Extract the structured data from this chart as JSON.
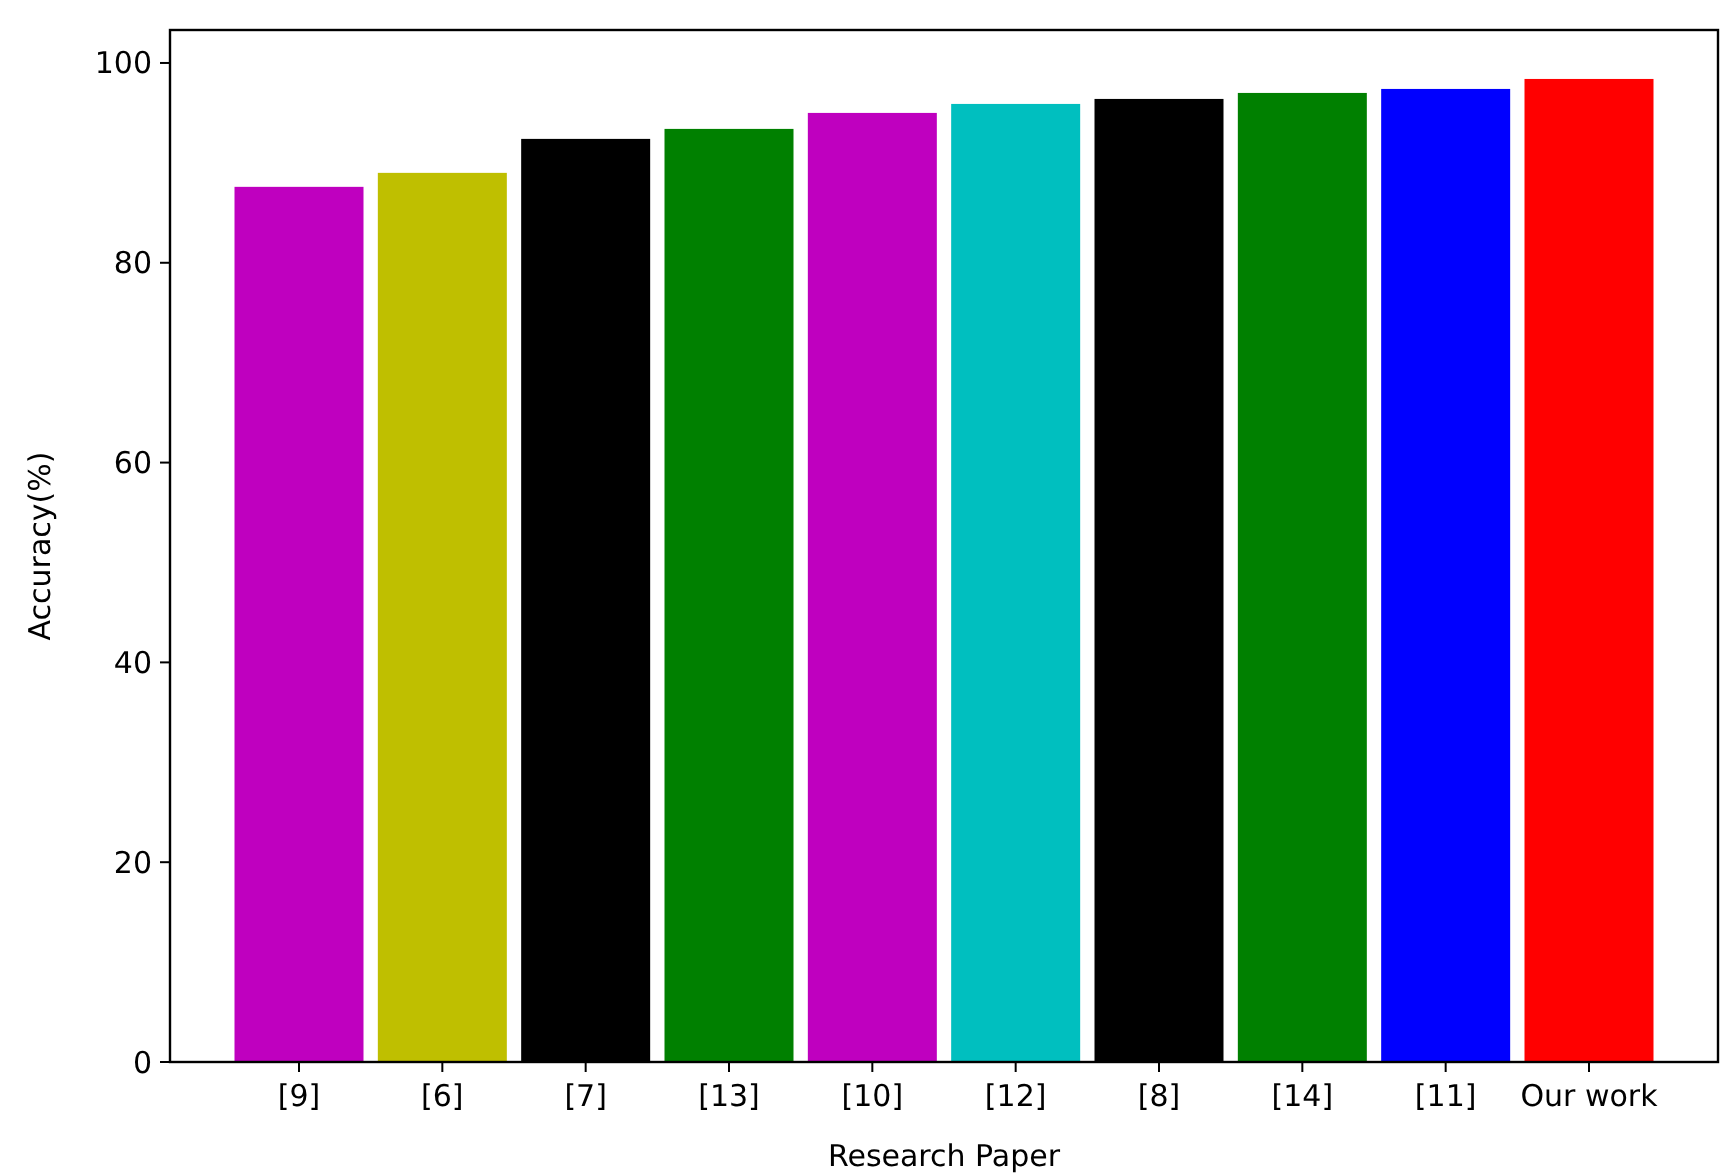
{
  "chart_data": {
    "type": "bar",
    "xlabel": "Research Paper",
    "ylabel": "Accuracy(%)",
    "categories": [
      "[9]",
      "[6]",
      "[7]",
      "[13]",
      "[10]",
      "[12]",
      "[8]",
      "[14]",
      "[11]",
      "Our work"
    ],
    "values": [
      87.6,
      89.0,
      92.4,
      93.4,
      95.0,
      95.9,
      96.4,
      97.0,
      97.4,
      98.4
    ],
    "colors": [
      "#bf00bf",
      "#bfbf00",
      "#000000",
      "#008000",
      "#bf00bf",
      "#00bfbf",
      "#000000",
      "#008000",
      "#0000ff",
      "#ff0000"
    ],
    "ylim": [
      0,
      103.3
    ],
    "yticks": [
      0,
      20,
      40,
      60,
      80,
      100
    ],
    "grid": false
  }
}
